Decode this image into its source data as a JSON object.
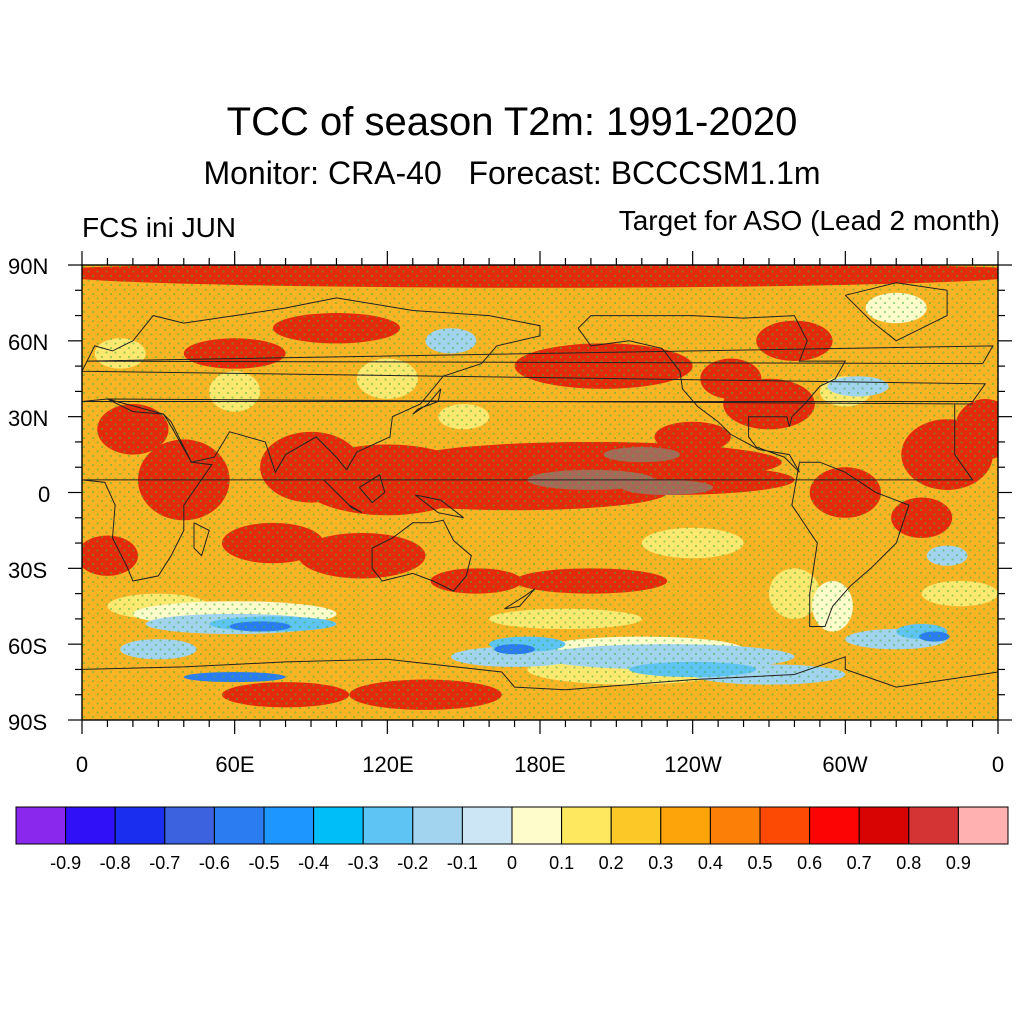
{
  "title": "TCC of season T2m: 1991-2020",
  "subtitle": "Monitor: CRA-40   Forecast: BCCCSM1.1m",
  "left_label": "FCS ini JUN",
  "right_label": "Target for ASO (Lead 2 month)",
  "lat_ticks": [
    "90N",
    "60N",
    "30N",
    "0",
    "30S",
    "60S",
    "90S"
  ],
  "lon_ticks": [
    "0",
    "60E",
    "120E",
    "180E",
    "120W",
    "60W",
    "0"
  ],
  "colorbar": {
    "colors": [
      "#8a28ee",
      "#3010f6",
      "#1a2ef0",
      "#3c62e0",
      "#2a7cf0",
      "#1e96ff",
      "#00bef8",
      "#5ec4f4",
      "#a2d4f0",
      "#cce6f6",
      "#fffccc",
      "#fde860",
      "#fcc828",
      "#fca40a",
      "#fc8008",
      "#fc4a04",
      "#fc0404",
      "#d80404",
      "#d43434",
      "#ffb0b0"
    ],
    "labels": [
      "-0.9",
      "-0.8",
      "-0.7",
      "-0.6",
      "-0.5",
      "-0.4",
      "-0.3",
      "-0.2",
      "-0.1",
      "0",
      "0.1",
      "0.2",
      "0.3",
      "0.4",
      "0.5",
      "0.6",
      "0.7",
      "0.8",
      "0.9"
    ]
  },
  "map_colors": {
    "base": "#fcb424",
    "strong": "#e42a0a",
    "very_strong": "#a86858",
    "weak": "#fde870",
    "neutral": "#fffccc",
    "neg_light": "#a2d4f0",
    "neg_mid": "#5ec4f4",
    "neg_strong": "#2a7cf0",
    "stipple": "#3cb43c",
    "coast": "#222222"
  }
}
